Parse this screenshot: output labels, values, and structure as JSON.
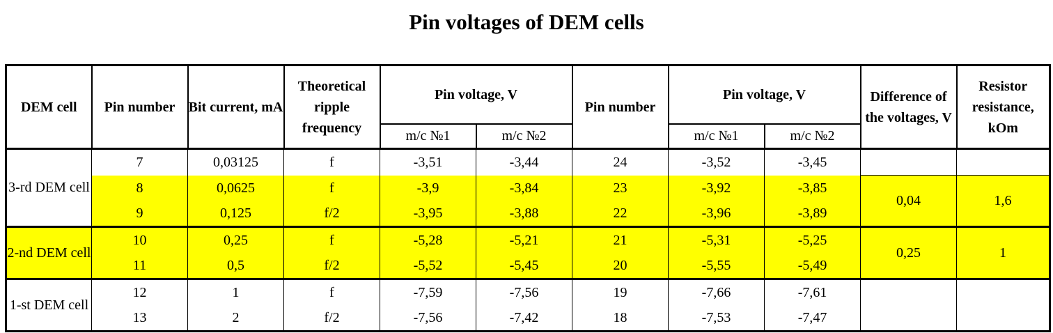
{
  "title": "Pin voltages of DEM cells",
  "headers": {
    "dem_cell": "DEM cell",
    "pin_number_1": "Pin number",
    "bit_current": "Bit current, mA",
    "ripple": "Theoretical ripple frequency",
    "pin_voltage_1": "Pin voltage, V",
    "pin_number_2": "Pin number",
    "pin_voltage_2": "Pin voltage, V",
    "difference": "Difference of the voltages, V",
    "resistor": "Resistor resistance, kOm",
    "mc1_a": "m/c №1",
    "mc2_a": "m/c №2",
    "mc1_b": "m/c №1",
    "mc2_b": "m/c №2"
  },
  "groups": [
    {
      "label": "3-rd DEM cell",
      "difference": "0,04",
      "resistor": "1,6"
    },
    {
      "label": "2-nd DEM cell",
      "difference": "0,25",
      "resistor": "1"
    },
    {
      "label": "1-st DEM cell",
      "difference": "",
      "resistor": ""
    }
  ],
  "rows": [
    {
      "pin1": "7",
      "current": "0,03125",
      "freq": "f",
      "v1a": "-3,51",
      "v1b": "-3,44",
      "pin2": "24",
      "v2a": "-3,52",
      "v2b": "-3,45"
    },
    {
      "pin1": "8",
      "current": "0,0625",
      "freq": "f",
      "v1a": "-3,9",
      "v1b": "-3,84",
      "pin2": "23",
      "v2a": "-3,92",
      "v2b": "-3,85"
    },
    {
      "pin1": "9",
      "current": "0,125",
      "freq": "f/2",
      "v1a": "-3,95",
      "v1b": "-3,88",
      "pin2": "22",
      "v2a": "-3,96",
      "v2b": "-3,89"
    },
    {
      "pin1": "10",
      "current": "0,25",
      "freq": "f",
      "v1a": "-5,28",
      "v1b": "-5,21",
      "pin2": "21",
      "v2a": "-5,31",
      "v2b": "-5,25"
    },
    {
      "pin1": "11",
      "current": "0,5",
      "freq": "f/2",
      "v1a": "-5,52",
      "v1b": "-5,45",
      "pin2": "20",
      "v2a": "-5,55",
      "v2b": "-5,49"
    },
    {
      "pin1": "12",
      "current": "1",
      "freq": "f",
      "v1a": "-7,59",
      "v1b": "-7,56",
      "pin2": "19",
      "v2a": "-7,66",
      "v2b": "-7,61"
    },
    {
      "pin1": "13",
      "current": "2",
      "freq": "f/2",
      "v1a": "-7,56",
      "v1b": "-7,42",
      "pin2": "18",
      "v2a": "-7,53",
      "v2b": "-7,47"
    }
  ],
  "highlight_color": "#ffff00"
}
